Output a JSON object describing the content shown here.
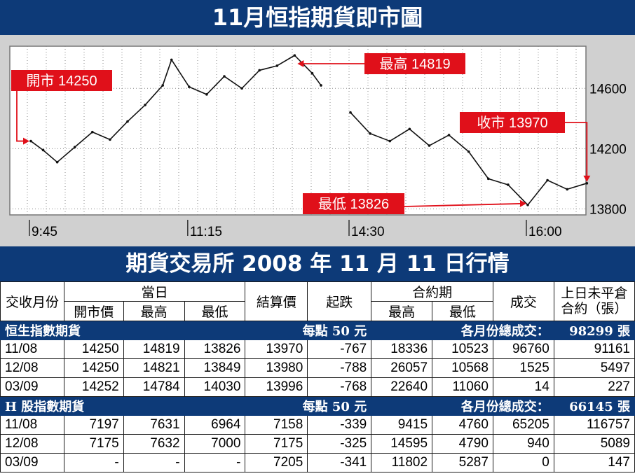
{
  "title": "11月恒指期貨即市圖",
  "colors": {
    "navy": "#0d3a78",
    "red": "#e0101a",
    "panel": "#d0d0d0"
  },
  "chart_data": {
    "type": "line",
    "x_ticks": [
      "9:45",
      "11:15",
      "14:30",
      "16:00"
    ],
    "y_ticks": [
      14600,
      14200,
      13800
    ],
    "ylim": [
      13760,
      14880
    ],
    "grid": true,
    "series": [
      {
        "x": [
          "9:45",
          "9:52",
          "10:00",
          "10:10",
          "10:20",
          "10:30",
          "10:40",
          "10:50",
          "11:00",
          "11:05",
          "11:15",
          "11:25",
          "11:35",
          "11:45",
          "11:55",
          "12:05",
          "12:15",
          "12:25",
          "12:30",
          "14:30",
          "14:40",
          "14:50",
          "15:00",
          "15:10",
          "15:20",
          "15:30",
          "15:40",
          "15:50",
          "16:00",
          "16:10",
          "16:20",
          "16:30"
        ],
        "values": [
          14250,
          14190,
          14110,
          14210,
          14310,
          14260,
          14380,
          14490,
          14620,
          14790,
          14610,
          14560,
          14680,
          14600,
          14720,
          14750,
          14819,
          14700,
          14620,
          14440,
          14300,
          14250,
          14330,
          14220,
          14290,
          14180,
          14000,
          13960,
          13826,
          13990,
          13930,
          13970
        ]
      }
    ],
    "annotations": [
      {
        "label": "開市 14250",
        "x": "9:45",
        "value": 14250
      },
      {
        "label": "最高 14819",
        "x": "12:15",
        "value": 14819
      },
      {
        "label": "收市 13970",
        "x": "16:30",
        "value": 13970
      },
      {
        "label": "最低 13826",
        "x": "16:00",
        "value": 13826
      }
    ]
  },
  "table": {
    "title": "期貨交易所 2008 年 11 月 11 日行情",
    "headers": {
      "month": "交收月份",
      "day": "當日",
      "open": "開市價",
      "high": "最高",
      "low": "最低",
      "settle": "結算價",
      "change": "起跌",
      "contract": "合約期",
      "c_high": "最高",
      "c_low": "最低",
      "volume": "成交",
      "oi_line1": "上日未平倉",
      "oi_line2": "合約（張）"
    },
    "sections": [
      {
        "name": "恒生指數期貨",
        "per_point": "每點 50 元",
        "total_label": "各月份總成交：",
        "total": "98299 張",
        "rows": [
          [
            "11/08",
            "14250",
            "14819",
            "13826",
            "13970",
            "-767",
            "18336",
            "10523",
            "96760",
            "91161"
          ],
          [
            "12/08",
            "14250",
            "14821",
            "13849",
            "13980",
            "-788",
            "26057",
            "10568",
            "1525",
            "5497"
          ],
          [
            "03/09",
            "14252",
            "14784",
            "14030",
            "13996",
            "-768",
            "22640",
            "11060",
            "14",
            "227"
          ]
        ]
      },
      {
        "name": "H 股指數期貨",
        "per_point": "每點 50 元",
        "total_label": "各月份總成交：",
        "total": "66145 張",
        "rows": [
          [
            "11/08",
            "7197",
            "7631",
            "6964",
            "7158",
            "-339",
            "9415",
            "4760",
            "65205",
            "116757"
          ],
          [
            "12/08",
            "7175",
            "7632",
            "7000",
            "7175",
            "-325",
            "14595",
            "4790",
            "940",
            "5089"
          ],
          [
            "03/09",
            "-",
            "-",
            "-",
            "7205",
            "-341",
            "11802",
            "5287",
            "0",
            "147"
          ]
        ]
      }
    ]
  }
}
